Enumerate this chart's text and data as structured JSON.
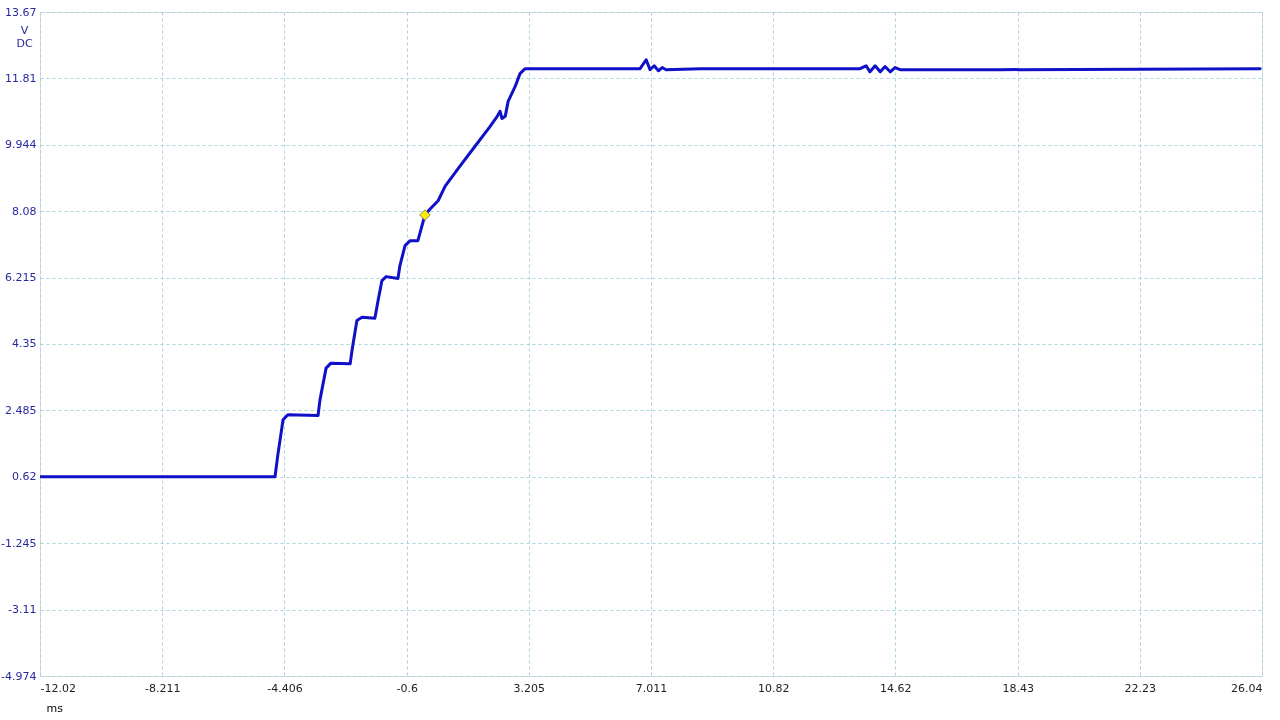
{
  "chart_data": {
    "type": "line",
    "xlabel": "ms",
    "ylabel": "V DC",
    "xlim": [
      -12.02,
      26.04
    ],
    "xticks": [
      -12.02,
      -8.211,
      -4.406,
      -0.6,
      3.205,
      7.011,
      10.82,
      14.62,
      18.43,
      22.23,
      26.04
    ],
    "ylim": [
      -4.974,
      13.67
    ],
    "yticks": [
      -4.974,
      -3.11,
      -1.245,
      0.62,
      2.485,
      4.35,
      6.215,
      8.08,
      9.944,
      11.81,
      13.67
    ],
    "grid": true,
    "line_style": "solid",
    "series": [
      {
        "color": "#1010c8",
        "x": [
          -12.02,
          -4.7,
          -4.61,
          -4.45,
          -4.3,
          -3.36,
          -3.3,
          -3.11,
          -2.96,
          -2.36,
          -2.3,
          -2.15,
          -1.99,
          -1.59,
          -1.49,
          -1.37,
          -1.24,
          -0.87,
          -0.81,
          -0.65,
          -0.49,
          -0.25,
          -0.15,
          -0.03,
          0.13,
          0.38,
          0.6,
          1.06,
          1.53,
          2.0,
          2.22,
          2.31,
          2.37,
          2.47,
          2.56,
          2.78,
          2.93,
          3.09,
          3.71,
          6.67,
          6.86,
          6.98,
          7.11,
          7.24,
          7.36,
          7.48,
          8.54,
          13.52,
          13.71,
          13.83,
          13.99,
          14.15,
          14.3,
          14.46,
          14.61,
          14.77,
          17.88,
          25.98
        ],
        "values": [
          0.62,
          0.62,
          1.25,
          2.22,
          2.36,
          2.34,
          2.78,
          3.67,
          3.81,
          3.79,
          4.18,
          5.01,
          5.1,
          5.07,
          5.57,
          6.13,
          6.24,
          6.19,
          6.55,
          7.11,
          7.25,
          7.25,
          7.58,
          7.97,
          8.14,
          8.37,
          8.78,
          9.34,
          9.9,
          10.46,
          10.74,
          10.88,
          10.68,
          10.74,
          11.16,
          11.58,
          11.94,
          12.08,
          12.08,
          12.08,
          12.33,
          12.05,
          12.16,
          12.02,
          12.11,
          12.05,
          12.08,
          12.08,
          12.16,
          11.99,
          12.16,
          11.99,
          12.14,
          11.99,
          12.11,
          12.05,
          12.05,
          12.08
        ]
      },
      {
        "type": "scatter",
        "marker": "diamond",
        "color": "#ffee00",
        "x": [
          -0.03
        ],
        "values": [
          7.97
        ]
      }
    ]
  }
}
